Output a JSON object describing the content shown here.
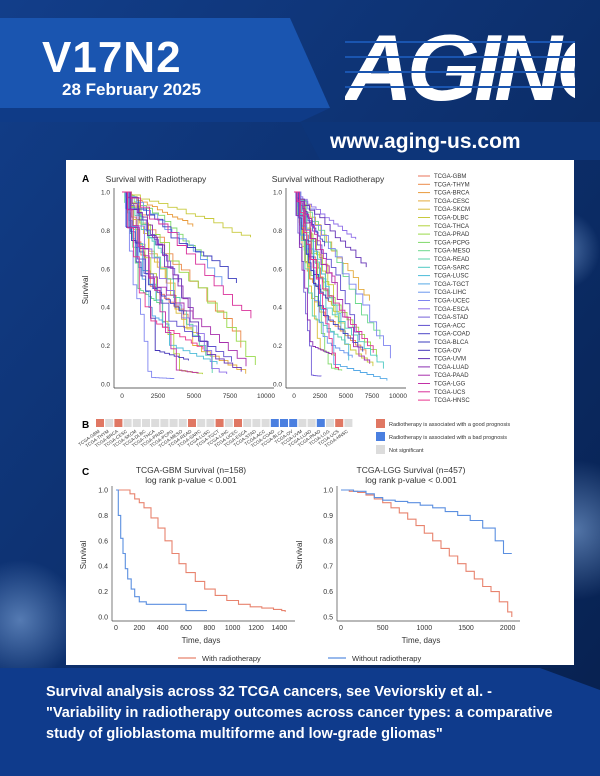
{
  "cover": {
    "volume": "V17N2",
    "date": "28 February 2025",
    "logo_text": "AGING",
    "url": "www.aging-us.com",
    "caption": "Survival analysis across 32 TCGA cancers, see Veviorskiy et al. - \"Variability in radiotherapy outcomes across cancer types: a comparative study of glioblastoma multiforme and low-grade gliomas\""
  },
  "figure": {
    "panel_a": {
      "label": "A",
      "title_left": "Survival with Radiotherapy",
      "title_right": "Survival without Radiotherapy",
      "ylabel": "Survival",
      "yticks": [
        "1.0",
        "0.8",
        "0.6",
        "0.4",
        "0.2",
        "0.0"
      ],
      "xticks": [
        "0",
        "2500",
        "5000",
        "7500",
        "10000"
      ],
      "legend": [
        "TCGA-GBM",
        "TCGA-THYM",
        "TCGA-BRCA",
        "TCGA-CESC",
        "TCGA-SKCM",
        "TCGA-DLBC",
        "TCGA-THCA",
        "TCGA-PRAD",
        "TCGA-PCPG",
        "TCGA-MESO",
        "TCGA-READ",
        "TCGA-SARC",
        "TCGA-LUSC",
        "TCGA-TGCT",
        "TCGA-LIHC",
        "TCGA-UCEC",
        "TCGA-ESCA",
        "TCGA-STAD",
        "TCGA-ACC",
        "TCGA-COAD",
        "TCGA-BLCA",
        "TCGA-OV",
        "TCGA-UVM",
        "TCGA-LUAD",
        "TCGA-PAAD",
        "TCGA-LGG",
        "TCGA-UCS",
        "TCGA-HNSC"
      ],
      "legend_colors": [
        "#e8735a",
        "#eb8a4a",
        "#e99a3a",
        "#e4ab3c",
        "#d9bb3a",
        "#c8c93c",
        "#b3d23d",
        "#98d94a",
        "#7fd96a",
        "#6ad88c",
        "#5ad3aa",
        "#4fc9c3",
        "#4bbbd8",
        "#56a9e6",
        "#6a97ee",
        "#7f84f0",
        "#8f6fe8",
        "#7561d8",
        "#5f4fce",
        "#4c46c6",
        "#3b3dbf",
        "#4334b8",
        "#6331b5",
        "#8a2eb2",
        "#a82fac",
        "#c22fa6",
        "#d9309a",
        "#e8338d"
      ]
    },
    "panel_b": {
      "label": "B",
      "categories": [
        "TCGA-GBM",
        "TCGA-THYM",
        "TCGA-BRCA",
        "TCGA-CESC",
        "TCGA-SKCM",
        "TCGA-DLBC",
        "TCGA-THCA",
        "TCGA-PRAD",
        "TCGA-PCPG",
        "TCGA-MESO",
        "TCGA-READ",
        "TCGA-SARC",
        "TCGA-LUSC",
        "TCGA-TGCT",
        "TCGA-LIHC",
        "TCGA-UCEC",
        "TCGA-ESCA",
        "TCGA-STAD",
        "TCGA-ACC",
        "TCGA-COAD",
        "TCGA-BLCA",
        "TCGA-OV",
        "TCGA-UVM",
        "TCGA-LUAD",
        "TCGA-PAAD",
        "TCGA-LGG",
        "TCGA-UCS",
        "TCGA-HNSC"
      ],
      "status": [
        "good",
        "none",
        "good",
        "none",
        "none",
        "none",
        "none",
        "none",
        "none",
        "none",
        "good",
        "none",
        "none",
        "good",
        "none",
        "good",
        "none",
        "none",
        "none",
        "bad",
        "bad",
        "bad",
        "none",
        "none",
        "bad",
        "none",
        "good",
        "none"
      ],
      "legend_good": "Radiotherapy is associated with a good prognosis",
      "legend_bad": "Radiotherapy is associated with a bad prognosis",
      "legend_ns": "Not significant",
      "colors": {
        "good": "#e07763",
        "bad": "#4a7fe0",
        "none": "#dcdcdc"
      }
    },
    "panel_c": {
      "label": "C",
      "gbm_title": "TCGA-GBM Survival (n=158)",
      "gbm_pvalue": "log rank p-value <  0.001",
      "lgg_title": "TCGA-LGG Survival (n=457)",
      "lgg_pvalue": "log rank p-value <  0.001",
      "ylabel": "Survival",
      "xlabel": "Time, days",
      "gbm_yticks": [
        "1.0",
        "0.8",
        "0.6",
        "0.4",
        "0.2",
        "0.0"
      ],
      "gbm_xticks": [
        "0",
        "200",
        "400",
        "600",
        "800",
        "1000",
        "1200",
        "1400"
      ],
      "lgg_yticks": [
        "1.0",
        "0.9",
        "0.8",
        "0.7",
        "0.6",
        "0.5"
      ],
      "lgg_xticks": [
        "0",
        "500",
        "1000",
        "1500",
        "2000"
      ],
      "legend_with": "With radiotherapy",
      "legend_without": "Without radiotherapy",
      "color_with": "#e8836e",
      "color_without": "#5b8fe0"
    }
  },
  "chart_data": [
    {
      "type": "line",
      "title": "TCGA-GBM Survival (n=158)",
      "xlabel": "Time, days",
      "ylabel": "Survival",
      "xlim": [
        0,
        1500
      ],
      "ylim": [
        0,
        1.0
      ],
      "series": [
        {
          "name": "With radiotherapy",
          "x": [
            0,
            80,
            120,
            160,
            200,
            240,
            300,
            360,
            420,
            480,
            540,
            600,
            680,
            760,
            850,
            950,
            1050,
            1150,
            1250,
            1350,
            1420,
            1450
          ],
          "y": [
            1.0,
            1.0,
            0.97,
            0.93,
            0.9,
            0.86,
            0.78,
            0.7,
            0.6,
            0.5,
            0.42,
            0.35,
            0.28,
            0.22,
            0.17,
            0.13,
            0.1,
            0.08,
            0.07,
            0.06,
            0.05,
            0.04
          ]
        },
        {
          "name": "Without radiotherapy",
          "x": [
            0,
            20,
            40,
            60,
            80,
            100,
            130,
            160,
            200,
            260,
            330,
            450,
            600,
            700,
            780
          ],
          "y": [
            1.0,
            0.8,
            0.62,
            0.5,
            0.38,
            0.3,
            0.22,
            0.16,
            0.12,
            0.1,
            0.1,
            0.1,
            0.05,
            0.05,
            0.05
          ]
        }
      ]
    },
    {
      "type": "line",
      "title": "TCGA-LGG Survival (n=457)",
      "xlabel": "Time, days",
      "ylabel": "Survival",
      "xlim": [
        0,
        2100
      ],
      "ylim": [
        0.5,
        1.0
      ],
      "series": [
        {
          "name": "With radiotherapy",
          "x": [
            0,
            100,
            200,
            300,
            400,
            500,
            600,
            700,
            800,
            900,
            1000,
            1100,
            1200,
            1300,
            1400,
            1500,
            1600,
            1700,
            1800,
            1900,
            2000,
            2050
          ],
          "y": [
            1.0,
            0.995,
            0.99,
            0.98,
            0.965,
            0.95,
            0.93,
            0.91,
            0.885,
            0.86,
            0.83,
            0.8,
            0.77,
            0.74,
            0.71,
            0.68,
            0.65,
            0.62,
            0.6,
            0.56,
            0.52,
            0.5
          ]
        },
        {
          "name": "Without radiotherapy",
          "x": [
            0,
            150,
            300,
            400,
            500,
            650,
            800,
            950,
            1100,
            1250,
            1400,
            1550,
            1700,
            1850,
            1950,
            2050
          ],
          "y": [
            1.0,
            0.995,
            0.985,
            0.97,
            0.96,
            0.955,
            0.95,
            0.94,
            0.93,
            0.915,
            0.9,
            0.88,
            0.85,
            0.8,
            0.75,
            0.75
          ]
        }
      ]
    }
  ]
}
